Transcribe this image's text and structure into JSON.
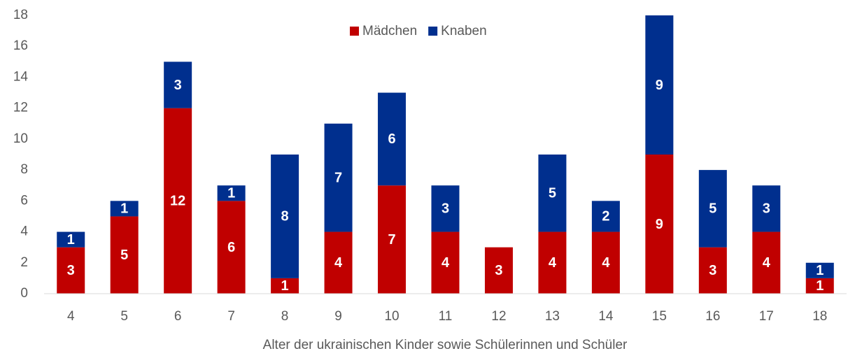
{
  "chart_data": {
    "type": "stacked_bar",
    "x_label": "Alter der ukrainischen Kinder sowie Schülerinnen und Schüler",
    "categories": [
      "4",
      "5",
      "6",
      "7",
      "8",
      "9",
      "10",
      "11",
      "12",
      "13",
      "14",
      "15",
      "16",
      "17",
      "18"
    ],
    "series": [
      {
        "name": "Mädchen",
        "color": "#c00000",
        "values": [
          3,
          5,
          12,
          6,
          1,
          4,
          7,
          4,
          3,
          4,
          4,
          9,
          3,
          4,
          1
        ]
      },
      {
        "name": "Knaben",
        "color": "#002f8e",
        "values": [
          1,
          1,
          3,
          1,
          8,
          7,
          6,
          3,
          0,
          5,
          2,
          9,
          5,
          3,
          1
        ]
      }
    ],
    "ylim": [
      0,
      18
    ],
    "yticks": [
      0,
      2,
      4,
      6,
      8,
      10,
      12,
      14,
      16,
      18
    ],
    "grid": false,
    "legend": "top"
  }
}
